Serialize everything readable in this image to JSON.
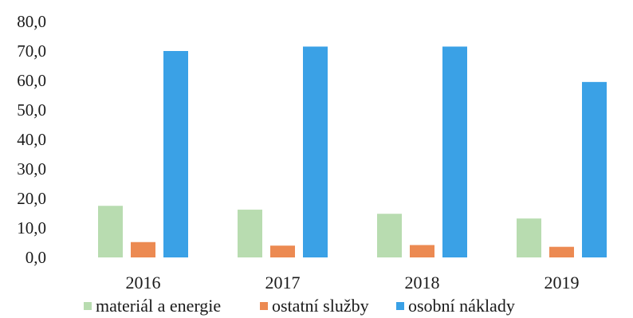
{
  "chart_data": {
    "type": "bar",
    "categories": [
      "2016",
      "2017",
      "2018",
      "2019"
    ],
    "series": [
      {
        "name": "materiál a energie",
        "color": "#b8dcb0",
        "values": [
          17.5,
          16.2,
          14.8,
          13.2
        ]
      },
      {
        "name": "ostatní služby",
        "color": "#ec8a52",
        "values": [
          5.2,
          4.0,
          4.2,
          3.6
        ]
      },
      {
        "name": "osobní náklady",
        "color": "#3aa1e6",
        "values": [
          70.0,
          71.5,
          71.5,
          59.5
        ]
      }
    ],
    "yticks": [
      "0,0",
      "10,0",
      "20,0",
      "30,0",
      "40,0",
      "50,0",
      "60,0",
      "70,0",
      "80,0"
    ],
    "ylim": [
      0,
      80
    ],
    "grid": false,
    "legend_position": "bottom",
    "title": "",
    "xlabel": "",
    "ylabel": ""
  }
}
